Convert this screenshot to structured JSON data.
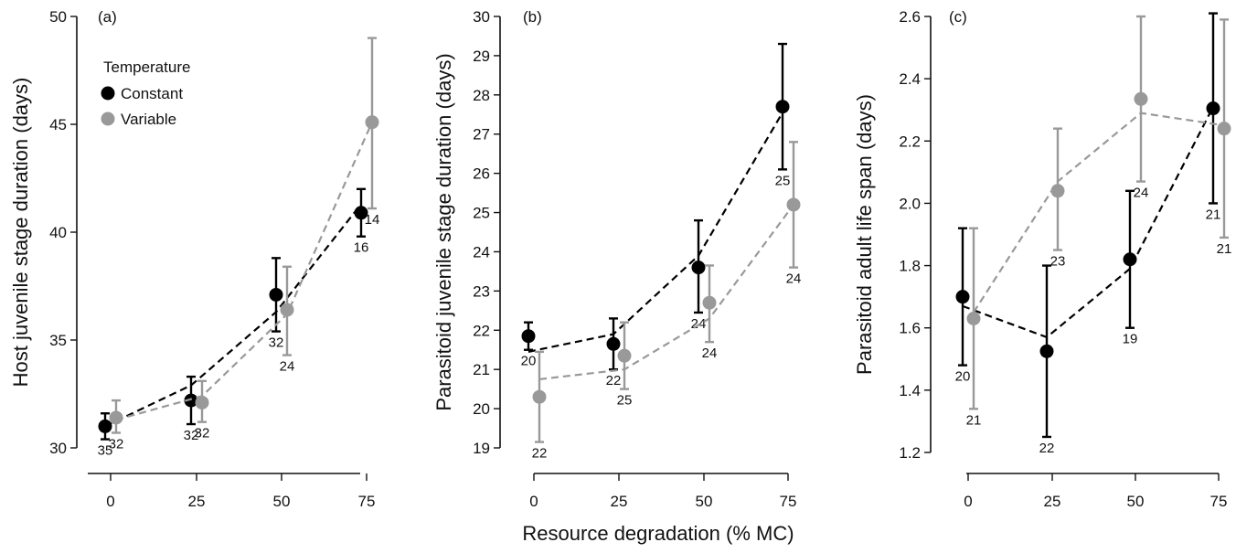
{
  "colors": {
    "constant": "#000000",
    "variable": "#999999"
  },
  "shared_xlabel": "Resource degradation (% MC)",
  "legend": {
    "title": "Temperature",
    "items": [
      {
        "label": "Constant",
        "color": "#000000"
      },
      {
        "label": "Variable",
        "color": "#999999"
      }
    ]
  },
  "chart_data": [
    {
      "type": "scatter",
      "panel": "(a)",
      "ylabel": "Host juvenile stage duration (days)",
      "x_ticks": [
        "0",
        "25",
        "50",
        "75"
      ],
      "x_values": [
        0,
        25,
        50,
        75
      ],
      "y_ticks": [
        "30",
        "35",
        "40",
        "45",
        "50"
      ],
      "ylim": [
        30,
        50
      ],
      "series": [
        {
          "name": "Constant",
          "values": [
            31.0,
            32.2,
            37.1,
            40.9
          ],
          "lower": [
            30.4,
            31.1,
            35.4,
            39.8
          ],
          "upper": [
            31.6,
            33.3,
            38.8,
            42.0
          ],
          "n": [
            "35",
            "32",
            "32",
            "16"
          ],
          "trend": [
            31.0,
            32.9,
            36.3,
            41.3
          ]
        },
        {
          "name": "Variable",
          "values": [
            31.4,
            32.1,
            36.4,
            45.1
          ],
          "lower": [
            30.7,
            31.2,
            34.3,
            41.1
          ],
          "upper": [
            32.2,
            33.1,
            38.4,
            49.0
          ],
          "n": [
            "32",
            "32",
            "24",
            "14"
          ],
          "trend": [
            31.3,
            32.4,
            36.2,
            45.1
          ]
        }
      ]
    },
    {
      "type": "scatter",
      "panel": "(b)",
      "ylabel": "Parasitoid juvenile stage duration (days)",
      "x_ticks": [
        "0",
        "25",
        "50",
        "75"
      ],
      "x_values": [
        0,
        25,
        50,
        75
      ],
      "y_ticks": [
        "19",
        "20",
        "21",
        "22",
        "23",
        "24",
        "25",
        "26",
        "27",
        "28",
        "29",
        "30"
      ],
      "ylim": [
        19,
        30
      ],
      "series": [
        {
          "name": "Constant",
          "values": [
            21.85,
            21.65,
            23.6,
            27.7
          ],
          "lower": [
            21.5,
            21.0,
            22.45,
            26.1
          ],
          "upper": [
            22.2,
            22.3,
            24.8,
            29.3
          ],
          "n": [
            "20",
            "22",
            "24",
            "25"
          ],
          "trend": [
            21.45,
            21.9,
            23.9,
            27.55
          ]
        },
        {
          "name": "Variable",
          "values": [
            20.3,
            21.35,
            22.7,
            25.2
          ],
          "lower": [
            19.15,
            20.5,
            21.7,
            23.6
          ],
          "upper": [
            21.45,
            22.2,
            23.65,
            26.8
          ],
          "n": [
            "22",
            "25",
            "24",
            "24"
          ],
          "trend": [
            20.75,
            21.0,
            22.3,
            25.2
          ]
        }
      ]
    },
    {
      "type": "scatter",
      "panel": "(c)",
      "ylabel": "Parasitoid adult life span (days)",
      "x_ticks": [
        "0",
        "25",
        "50",
        "75"
      ],
      "x_values": [
        0,
        25,
        50,
        75
      ],
      "y_ticks": [
        "1.2",
        "1.4",
        "1.6",
        "1.8",
        "2.0",
        "2.2",
        "2.4",
        "2.6"
      ],
      "ylim": [
        1.2,
        2.6
      ],
      "series": [
        {
          "name": "Constant",
          "values": [
            1.7,
            1.525,
            1.82,
            2.305
          ],
          "lower": [
            1.48,
            1.25,
            1.6,
            2.0
          ],
          "upper": [
            1.92,
            1.8,
            2.04,
            2.61
          ],
          "n": [
            "20",
            "22",
            "19",
            "21"
          ],
          "trend": [
            1.67,
            1.57,
            1.79,
            2.31
          ]
        },
        {
          "name": "Variable",
          "values": [
            1.63,
            2.04,
            2.335,
            2.24
          ],
          "lower": [
            1.34,
            1.85,
            2.07,
            1.89
          ],
          "upper": [
            1.92,
            2.24,
            2.6,
            2.59
          ],
          "n": [
            "21",
            "23",
            "24",
            "21"
          ],
          "trend": [
            1.65,
            2.07,
            2.29,
            2.25
          ]
        }
      ]
    }
  ]
}
